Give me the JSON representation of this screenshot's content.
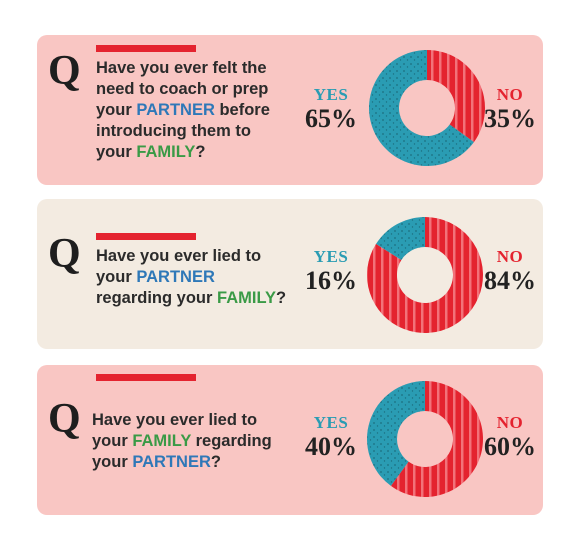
{
  "questions": [
    {
      "q_letter": "Q",
      "text_parts": [
        "Have you ever felt the",
        "need to coach or prep",
        "your ",
        "PARTNER",
        " before",
        "introducing them to",
        "your ",
        "FAMILY",
        "?"
      ],
      "yes_label": "YES",
      "yes_pct": "65%",
      "no_label": "NO",
      "no_pct": "35%"
    },
    {
      "q_letter": "Q",
      "text_parts": [
        "Have you ever lied to",
        "your ",
        "PARTNER",
        "regarding your ",
        "FAMILY",
        "?"
      ],
      "yes_label": "YES",
      "yes_pct": "16%",
      "no_label": "NO",
      "no_pct": "84%"
    },
    {
      "q_letter": "Q",
      "text_parts": [
        "Have you ever lied to",
        "your ",
        "FAMILY",
        " regarding",
        "your ",
        "PARTNER",
        "?"
      ],
      "yes_label": "YES",
      "yes_pct": "40%",
      "no_label": "NO",
      "no_pct": "60%"
    }
  ],
  "colors": {
    "yes": "#2a9cb3",
    "no": "#e4232f",
    "partner": "#2e78b8",
    "family": "#3a9a46"
  },
  "chart_data": [
    {
      "type": "pie",
      "categories": [
        "YES",
        "NO"
      ],
      "values": [
        65,
        35
      ]
    },
    {
      "type": "pie",
      "categories": [
        "YES",
        "NO"
      ],
      "values": [
        16,
        84
      ]
    },
    {
      "type": "pie",
      "categories": [
        "YES",
        "NO"
      ],
      "values": [
        40,
        60
      ]
    }
  ]
}
